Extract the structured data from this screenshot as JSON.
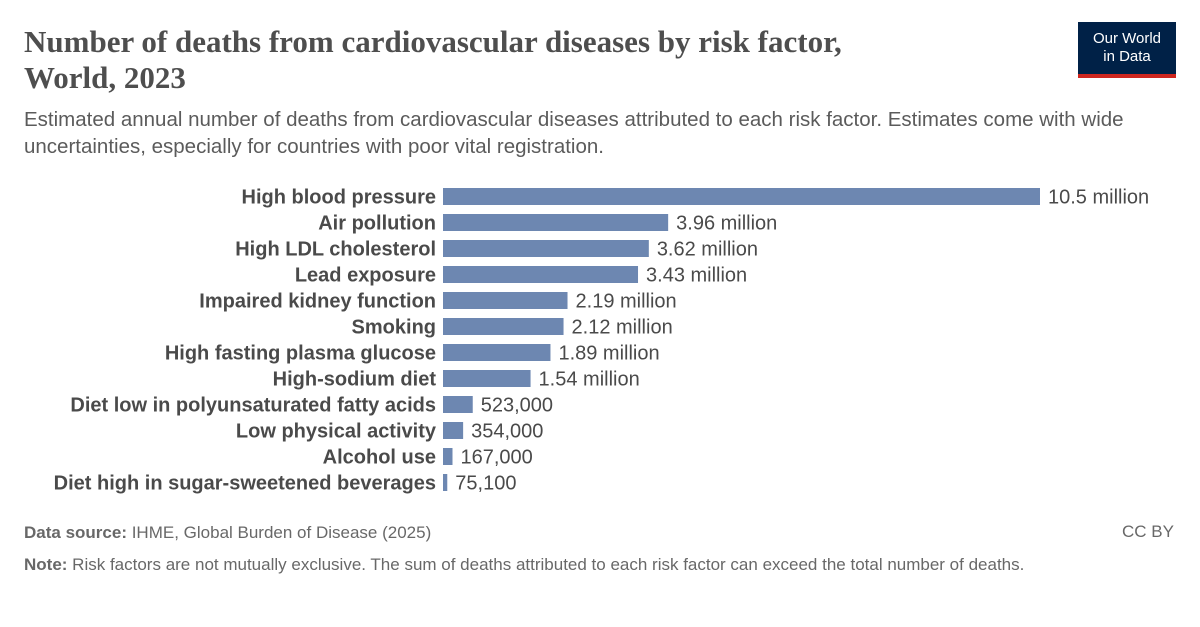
{
  "header": {
    "title_line1": "Number of deaths from cardiovascular diseases by risk factor,",
    "title_line2": "World, 2023",
    "subtitle": "Estimated annual number of deaths from cardiovascular diseases attributed to each risk factor. Estimates come with wide uncertainties, especially for countries with poor vital registration."
  },
  "logo": {
    "line1": "Our World",
    "line2": "in Data",
    "bg_color": "#002147",
    "accent_color": "#ce261e"
  },
  "chart_data": {
    "type": "bar",
    "orientation": "horizontal",
    "bar_color": "#6d87b1",
    "categories": [
      "High blood pressure",
      "Air pollution",
      "High LDL cholesterol",
      "Lead exposure",
      "Impaired kidney function",
      "Smoking",
      "High fasting plasma glucose",
      "High-sodium diet",
      "Diet low in polyunsaturated fatty acids",
      "Low physical activity",
      "Alcohol use",
      "Diet high in sugar-sweetened beverages"
    ],
    "values": [
      10500000,
      3960000,
      3620000,
      3430000,
      2190000,
      2120000,
      1890000,
      1540000,
      523000,
      354000,
      167000,
      75100
    ],
    "value_labels": [
      "10.5 million",
      "3.96 million",
      "3.62 million",
      "3.43 million",
      "2.19 million",
      "2.12 million",
      "1.89 million",
      "1.54 million",
      "523,000",
      "354,000",
      "167,000",
      "75,100"
    ],
    "xlim": [
      0,
      10500000
    ],
    "grid": false,
    "legend": "none"
  },
  "footer": {
    "source_label": "Data source:",
    "source_text": " IHME, Global Burden of Disease (2025)",
    "license": "CC BY",
    "note_label": "Note:",
    "note_text": " Risk factors are not mutually exclusive. The sum of deaths attributed to each risk factor can exceed the total number of deaths."
  }
}
